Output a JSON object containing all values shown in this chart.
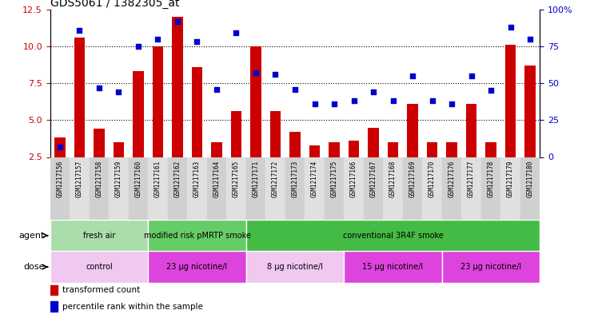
{
  "title": "GDS5061 / 1382305_at",
  "samples": [
    "GSM1217156",
    "GSM1217157",
    "GSM1217158",
    "GSM1217159",
    "GSM1217160",
    "GSM1217161",
    "GSM1217162",
    "GSM1217163",
    "GSM1217164",
    "GSM1217165",
    "GSM1217171",
    "GSM1217172",
    "GSM1217173",
    "GSM1217174",
    "GSM1217175",
    "GSM1217166",
    "GSM1217167",
    "GSM1217168",
    "GSM1217169",
    "GSM1217170",
    "GSM1217176",
    "GSM1217177",
    "GSM1217178",
    "GSM1217179",
    "GSM1217180"
  ],
  "bar_values": [
    3.8,
    10.6,
    4.4,
    3.5,
    8.3,
    10.0,
    12.0,
    8.6,
    3.5,
    5.6,
    10.0,
    5.6,
    4.2,
    3.3,
    3.5,
    3.6,
    4.5,
    3.5,
    6.1,
    3.5,
    3.5,
    6.1,
    3.5,
    10.1,
    8.7
  ],
  "dot_values": [
    6.5,
    86.0,
    47.0,
    44.0,
    75.0,
    80.0,
    92.0,
    78.0,
    46.0,
    84.0,
    57.0,
    56.0,
    46.0,
    36.0,
    36.0,
    38.0,
    44.0,
    38.0,
    55.0,
    38.0,
    36.0,
    55.0,
    45.0,
    88.0,
    80.0
  ],
  "ylim_left": [
    2.5,
    12.5
  ],
  "ylim_right": [
    0,
    100
  ],
  "yticks_left": [
    2.5,
    5.0,
    7.5,
    10.0,
    12.5
  ],
  "yticks_right": [
    0,
    25,
    50,
    75,
    100
  ],
  "ytick_labels_right": [
    "0",
    "25",
    "50",
    "75",
    "100%"
  ],
  "hlines": [
    5.0,
    7.5,
    10.0
  ],
  "bar_color": "#cc0000",
  "dot_color": "#0000cc",
  "agent_groups": [
    {
      "label": "fresh air",
      "start": 0,
      "end": 4,
      "color": "#aaddaa"
    },
    {
      "label": "modified risk pMRTP smoke",
      "start": 5,
      "end": 9,
      "color": "#66cc66"
    },
    {
      "label": "conventional 3R4F smoke",
      "start": 10,
      "end": 24,
      "color": "#44bb44"
    }
  ],
  "dose_groups": [
    {
      "label": "control",
      "start": 0,
      "end": 4,
      "color": "#f0c8f0"
    },
    {
      "label": "23 μg nicotine/l",
      "start": 5,
      "end": 9,
      "color": "#dd44dd"
    },
    {
      "label": "8 μg nicotine/l",
      "start": 10,
      "end": 14,
      "color": "#f0c8f0"
    },
    {
      "label": "15 μg nicotine/l",
      "start": 15,
      "end": 19,
      "color": "#dd44dd"
    },
    {
      "label": "23 μg nicotine/l",
      "start": 20,
      "end": 24,
      "color": "#dd44dd"
    }
  ],
  "legend_bar_label": "transformed count",
  "legend_dot_label": "percentile rank within the sample",
  "agent_label": "agent",
  "dose_label": "dose",
  "background_color": "#ffffff",
  "plot_bg_color": "#ffffff",
  "tick_area_color": "#d8d8d8",
  "tick_stripe_even": "#d0d0d0",
  "tick_stripe_odd": "#e0e0e0"
}
